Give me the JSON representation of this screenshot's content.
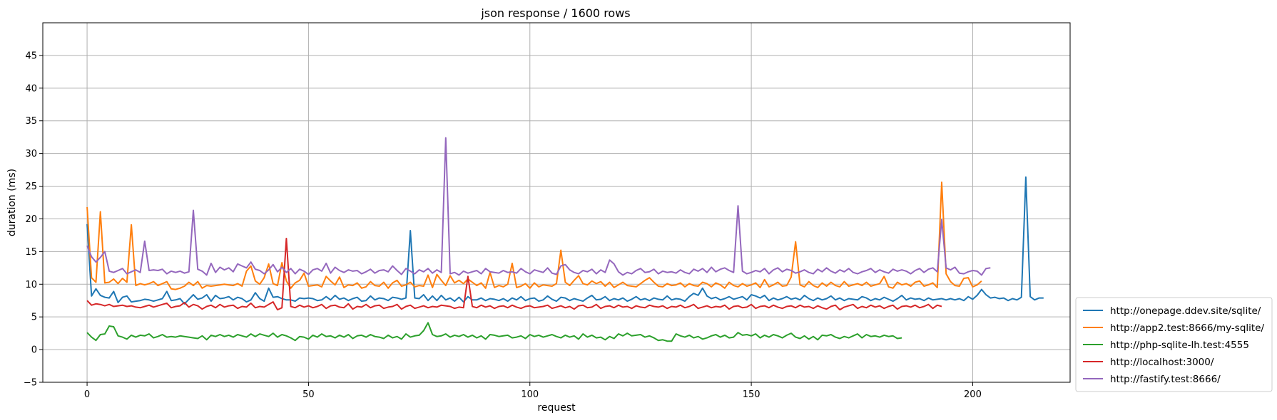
{
  "chart_data": {
    "type": "line",
    "title": "json response / 1600 rows",
    "xlabel": "request",
    "ylabel": "duration (ms)",
    "xlim": [
      -10,
      222
    ],
    "ylim": [
      -5,
      50
    ],
    "xticks": [
      0,
      50,
      100,
      150,
      200
    ],
    "yticks": [
      -5,
      0,
      5,
      10,
      15,
      20,
      25,
      30,
      35,
      40,
      45
    ],
    "grid": true,
    "legend_position": "lower-right-outside",
    "series": [
      {
        "name": "http://onepage.ddev.site/sqlite/",
        "color": "#1f77b4",
        "values": [
          19.2,
          8.2,
          9.3,
          8.3,
          8,
          7.9,
          8.9,
          7.2,
          8,
          8.2,
          7.3,
          7.4,
          7.5,
          7.7,
          7.6,
          7.4,
          7.6,
          7.8,
          8.9,
          7.5,
          7.6,
          7.8,
          7,
          7.7,
          8.4,
          7.7,
          7.9,
          8.4,
          7.4,
          8.3,
          7.8,
          7.9,
          8.1,
          7.6,
          8,
          7.8,
          7.3,
          7.6,
          8.7,
          7.8,
          7.4,
          9.4,
          8,
          8.1,
          7.8,
          7.6,
          7.6,
          7.4,
          7.9,
          7.8,
          7.9,
          7.8,
          7.5,
          7.6,
          8.1,
          7.6,
          8.3,
          7.7,
          7.9,
          7.5,
          7.8,
          8,
          7.4,
          7.5,
          8.2,
          7.6,
          7.9,
          7.8,
          7.5,
          8,
          7.9,
          7.7,
          7.9,
          18.2,
          7.9,
          7.8,
          8.4,
          7.5,
          8.2,
          7.5,
          8.3,
          7.6,
          7.9,
          7.4,
          8,
          7.3,
          8.1,
          7.6,
          7.6,
          7.9,
          7.5,
          7.8,
          7.7,
          7.5,
          7.8,
          7.4,
          7.9,
          7.6,
          8.1,
          7.5,
          7.8,
          7.9,
          7.4,
          7.6,
          8.2,
          7.7,
          7.4,
          8,
          7.9,
          7.5,
          7.8,
          7.6,
          7.4,
          7.9,
          8.3,
          7.6,
          7.7,
          8.1,
          7.5,
          7.8,
          7.6,
          7.9,
          7.4,
          7.7,
          8.1,
          7.6,
          7.8,
          7.5,
          7.9,
          7.7,
          7.6,
          8.2,
          7.6,
          7.8,
          7.7,
          7.4,
          8.1,
          8.6,
          8.3,
          9.4,
          8.2,
          7.8,
          8,
          7.6,
          7.8,
          8.1,
          7.7,
          7.9,
          8.1,
          7.6,
          8.4,
          8.2,
          7.9,
          8.3,
          7.5,
          7.9,
          7.6,
          7.8,
          8.1,
          7.7,
          7.9,
          7.6,
          8.3,
          7.8,
          7.5,
          7.9,
          7.6,
          7.8,
          8.2,
          7.6,
          7.9,
          7.5,
          7.8,
          7.7,
          7.6,
          8.1,
          7.9,
          7.5,
          7.8,
          7.6,
          8,
          7.7,
          7.4,
          7.8,
          8.3,
          7.6,
          7.9,
          7.7,
          7.8,
          7.5,
          7.9,
          7.6,
          7.7,
          7.8,
          7.6,
          7.8,
          7.6,
          7.8,
          7.5,
          8.1,
          7.7,
          8.3,
          9.2,
          8.4,
          7.9,
          8,
          7.8,
          7.9,
          7.5,
          7.8,
          7.6,
          8,
          26.4,
          8.1,
          7.6,
          7.9,
          7.9
        ]
      },
      {
        "name": "http://app2.test:8666/my-sqlite/",
        "color": "#ff7f0e",
        "values": [
          21.8,
          11,
          10.3,
          21.1,
          10.2,
          10.3,
          10.8,
          10.1,
          10.9,
          10.3,
          19.1,
          9.8,
          10.1,
          9.9,
          10.1,
          10.4,
          9.8,
          10.1,
          10.4,
          9.3,
          9.2,
          9.4,
          9.7,
          10.3,
          9.8,
          10.4,
          9.4,
          9.8,
          9.7,
          9.8,
          9.9,
          10,
          9.9,
          9.8,
          10.1,
          9.7,
          12,
          12.8,
          10.5,
          10,
          11,
          13.1,
          10.1,
          9.8,
          13.3,
          10.5,
          9.4,
          10.2,
          10.6,
          11.7,
          9.7,
          9.8,
          9.9,
          9.6,
          11.2,
          10.5,
          9.9,
          11.1,
          9.5,
          9.9,
          9.8,
          10.2,
          9.4,
          9.6,
          10.4,
          9.8,
          9.7,
          10.3,
          9.4,
          10.2,
          10.6,
          9.7,
          9.9,
          10.3,
          9.6,
          9.8,
          9.7,
          11.4,
          9.5,
          11.5,
          10.6,
          9.8,
          11.3,
          10.2,
          10.6,
          10.1,
          10.8,
          10.3,
          9.8,
          10.2,
          9.4,
          11.8,
          9.5,
          9.8,
          9.6,
          10,
          13.2,
          9.5,
          9.7,
          10.1,
          9.4,
          10.2,
          9.6,
          9.9,
          9.8,
          9.7,
          10.1,
          15.2,
          10.3,
          9.8,
          10.6,
          11.3,
          10.1,
          9.9,
          10.5,
          10.1,
          10.4,
          9.7,
          10.3,
          9.5,
          9.9,
          10.3,
          9.8,
          9.7,
          9.6,
          10.1,
          10.6,
          11,
          10.3,
          9.7,
          9.6,
          10.1,
          9.8,
          9.9,
          10.2,
          9.6,
          10.1,
          9.8,
          9.7,
          10.3,
          10.1,
          9.6,
          10.2,
          9.9,
          9.4,
          10.3,
          9.8,
          9.6,
          10.1,
          9.7,
          9.9,
          10.2,
          9.5,
          10.7,
          9.6,
          9.9,
          10.3,
          9.7,
          9.8,
          11.1,
          16.5,
          9.9,
          9.6,
          10.4,
          9.8,
          9.5,
          10.2,
          9.7,
          10.3,
          9.8,
          9.6,
          10.4,
          9.7,
          9.9,
          10.1,
          9.8,
          10.3,
          9.7,
          9.9,
          10.1,
          11.2,
          9.6,
          9.4,
          10.3,
          9.9,
          10.1,
          9.7,
          10.3,
          10.5,
          9.7,
          9.9,
          10.2,
          9.5,
          25.6,
          11.6,
          10.4,
          9.8,
          9.7,
          10.9,
          11,
          9.6,
          9.9,
          10.5
        ]
      },
      {
        "name": "http://php-sqlite-lh.test:4555",
        "color": "#2ca02c",
        "values": [
          2.6,
          1.9,
          1.4,
          2.3,
          2.4,
          3.6,
          3.5,
          2.1,
          1.9,
          1.6,
          2.2,
          1.9,
          2.2,
          2.1,
          2.4,
          1.8,
          2,
          2.3,
          1.9,
          2,
          1.9,
          2.1,
          2,
          1.9,
          1.8,
          1.7,
          2.1,
          1.5,
          2.2,
          2,
          2.3,
          2,
          2.2,
          1.9,
          2.3,
          2.1,
          1.9,
          2.4,
          2,
          2.4,
          2.2,
          2,
          2.5,
          1.9,
          2.3,
          2.1,
          1.8,
          1.4,
          2,
          1.9,
          1.6,
          2.2,
          1.9,
          2.4,
          2,
          2.1,
          1.8,
          2.2,
          1.9,
          2.3,
          1.7,
          2.1,
          2.2,
          1.9,
          2.3,
          2,
          1.9,
          1.7,
          2.2,
          1.8,
          2,
          1.6,
          2.4,
          1.9,
          2.1,
          2.2,
          2.9,
          4.1,
          2.3,
          2,
          2.1,
          2.4,
          1.9,
          2.2,
          2,
          2.3,
          1.9,
          2.2,
          1.8,
          2.1,
          1.6,
          2.3,
          2.2,
          2,
          2.1,
          2.2,
          1.8,
          1.9,
          2.1,
          1.7,
          2.3,
          2,
          2.2,
          1.9,
          2.1,
          2.3,
          2,
          1.8,
          2.2,
          1.9,
          2.1,
          1.6,
          2.4,
          1.9,
          2.2,
          1.8,
          1.9,
          1.5,
          2,
          1.7,
          2.4,
          2.1,
          2.5,
          2.1,
          2.2,
          2.3,
          1.9,
          2.1,
          1.8,
          1.4,
          1.5,
          1.3,
          1.3,
          2.4,
          2.1,
          1.9,
          2.2,
          1.8,
          2,
          1.6,
          1.8,
          2.1,
          2.3,
          1.9,
          2.2,
          1.8,
          1.9,
          2.6,
          2.2,
          2.3,
          2.1,
          2.4,
          1.8,
          2.2,
          1.9,
          2.3,
          2.1,
          1.8,
          2.2,
          2.5,
          1.9,
          1.7,
          2.1,
          1.6,
          2,
          1.5,
          2.2,
          2.1,
          2.3,
          1.9,
          1.7,
          2,
          1.8,
          2.1,
          2.4,
          1.8,
          2.3,
          2,
          2.1,
          1.9,
          2.2,
          2,
          2.1,
          1.7,
          1.8
        ]
      },
      {
        "name": "http://localhost:3000/",
        "color": "#d62728",
        "values": [
          7.5,
          6.8,
          7,
          6.9,
          6.7,
          6.9,
          6.6,
          6.7,
          6.8,
          6.6,
          6.7,
          6.5,
          6.4,
          6.6,
          6.8,
          6.5,
          6.7,
          6.9,
          7.1,
          6.4,
          6.6,
          6.7,
          7.2,
          6.5,
          6.9,
          6.7,
          6.2,
          6.6,
          6.8,
          6.4,
          6.9,
          6.5,
          6.7,
          6.8,
          6.3,
          6.6,
          6.5,
          7.1,
          6.4,
          6.6,
          6.5,
          6.9,
          7.3,
          6.1,
          6.4,
          17,
          6.6,
          6.4,
          6.8,
          6.5,
          6.7,
          6.4,
          6.6,
          6.9,
          6.3,
          6.7,
          6.8,
          6.5,
          6.4,
          7,
          6.2,
          6.6,
          6.5,
          6.9,
          6.4,
          6.7,
          6.8,
          6.3,
          6.5,
          6.6,
          6.9,
          6.2,
          6.6,
          6.8,
          6.3,
          6.5,
          6.7,
          6.4,
          6.6,
          6.5,
          6.8,
          6.7,
          6.6,
          6.3,
          6.5,
          6.4,
          11.2,
          6.6,
          6.4,
          6.8,
          6.5,
          6.7,
          6.3,
          6.6,
          6.7,
          6.4,
          6.8,
          6.5,
          6.3,
          6.6,
          6.7,
          6.4,
          6.5,
          6.6,
          6.8,
          6.3,
          6.5,
          6.7,
          6.4,
          6.6,
          6.2,
          6.7,
          6.8,
          6.4,
          6.5,
          6.9,
          6.3,
          6.6,
          6.7,
          6.4,
          6.8,
          6.5,
          6.6,
          6.3,
          6.7,
          6.5,
          6.4,
          6.8,
          6.6,
          6.5,
          6.7,
          6.3,
          6.6,
          6.5,
          6.8,
          6.4,
          6.6,
          6.9,
          6.3,
          6.5,
          6.7,
          6.4,
          6.6,
          6.5,
          6.8,
          6.2,
          6.6,
          6.7,
          6.4,
          6.5,
          6.9,
          6.3,
          6.6,
          6.7,
          6.4,
          6.8,
          6.5,
          6.3,
          6.6,
          6.7,
          6.4,
          6.8,
          6.5,
          6.6,
          6.3,
          6.7,
          6.4,
          6.2,
          6.6,
          6.8,
          6.1,
          6.5,
          6.7,
          6.9,
          6.3,
          6.6,
          6.4,
          6.8,
          6.5,
          6.7,
          6.3,
          6.6,
          6.8,
          6.2,
          6.6,
          6.7,
          6.5,
          6.8,
          6.4,
          6.6,
          6.9,
          6.3,
          6.8,
          6.6
        ]
      },
      {
        "name": "http://fastify.test:8666/",
        "color": "#9467bd",
        "values": [
          15.9,
          14.2,
          13.4,
          14.1,
          15,
          12,
          11.8,
          12.1,
          12.4,
          11.6,
          11.9,
          12.2,
          11.8,
          16.6,
          12.1,
          12.2,
          12.1,
          12.3,
          11.6,
          12,
          11.8,
          12,
          11.7,
          11.9,
          21.3,
          12.3,
          12,
          11.4,
          13.2,
          11.8,
          12.6,
          12.2,
          12.5,
          11.9,
          13.1,
          12.8,
          12.5,
          13.4,
          12.3,
          12.1,
          11.6,
          12.2,
          13,
          11.9,
          12.6,
          11.8,
          12.4,
          11.6,
          12.3,
          12,
          11.5,
          12.2,
          12.4,
          12,
          13.2,
          11.7,
          12.6,
          12.1,
          11.8,
          12.2,
          12,
          12.1,
          11.6,
          11.9,
          12.3,
          11.7,
          12.1,
          12.2,
          11.9,
          12.8,
          12.1,
          11.5,
          12.4,
          12,
          11.6,
          12.2,
          11.9,
          12.4,
          11.7,
          12.2,
          11.8,
          32.4,
          11.6,
          11.8,
          11.4,
          12,
          11.7,
          11.9,
          12.1,
          11.6,
          12.4,
          11.9,
          11.8,
          11.7,
          12.1,
          11.8,
          11.9,
          11.7,
          12.4,
          11.9,
          11.6,
          12.2,
          12,
          11.8,
          12.5,
          11.7,
          11.5,
          12.8,
          13,
          12.2,
          11.8,
          11.6,
          12.1,
          11.9,
          12.3,
          11.6,
          12.2,
          11.8,
          13.7,
          13.1,
          11.9,
          11.4,
          11.8,
          11.6,
          12.1,
          12.4,
          11.8,
          11.9,
          12.3,
          11.6,
          12,
          11.8,
          11.9,
          11.7,
          12.2,
          11.8,
          11.6,
          12.3,
          12,
          12.4,
          11.8,
          12.6,
          11.9,
          12.3,
          12.5,
          12.1,
          11.8,
          22,
          12,
          11.6,
          11.8,
          12.1,
          11.9,
          12.4,
          11.6,
          12.2,
          12.5,
          11.9,
          12.3,
          12.1,
          11.7,
          11.9,
          12.2,
          11.8,
          11.6,
          12.3,
          11.9,
          12.5,
          12,
          11.7,
          12.2,
          11.9,
          12.4,
          11.8,
          11.6,
          11.9,
          12.1,
          12.4,
          11.8,
          12.2,
          11.9,
          11.7,
          12.3,
          12,
          12.2,
          12,
          11.6,
          12.1,
          12.4,
          11.8,
          12.3,
          12.5,
          11.9,
          19.9,
          12.5,
          12.2,
          12.6,
          11.7,
          11.6,
          11.9,
          12.1,
          12,
          11.4,
          12.4,
          12.5
        ]
      }
    ]
  }
}
